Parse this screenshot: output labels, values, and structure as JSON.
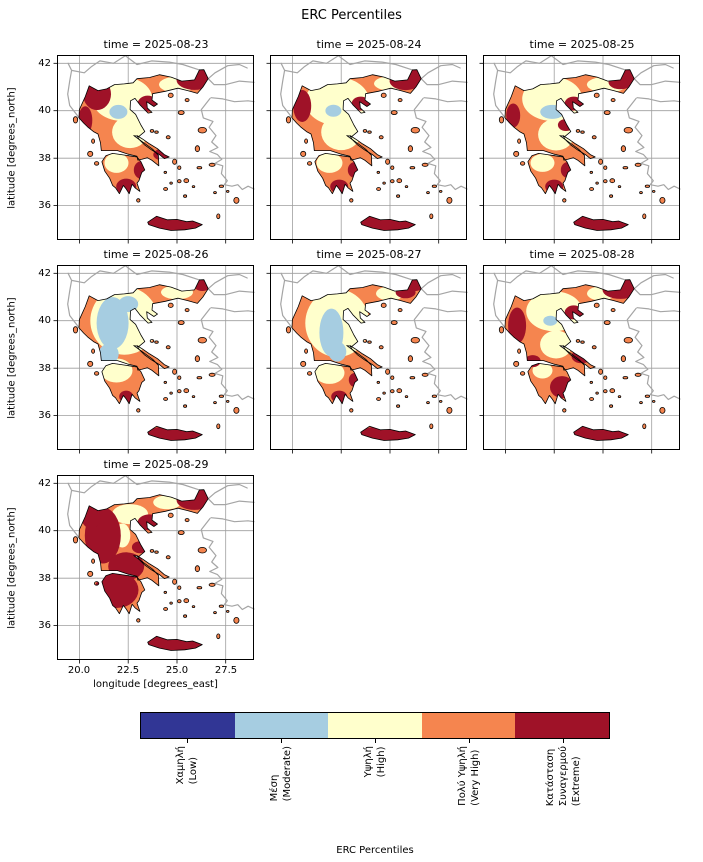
{
  "figure": {
    "title": "ERC Percentiles",
    "xlabel": "longitude [degrees_east]",
    "ylabel": "latitude [degrees_north]",
    "colorbar_label": "ERC Percentiles"
  },
  "facets": [
    {
      "title": "time = 2025-08-23"
    },
    {
      "title": "time = 2025-08-24"
    },
    {
      "title": "time = 2025-08-25"
    },
    {
      "title": "time = 2025-08-26"
    },
    {
      "title": "time = 2025-08-27"
    },
    {
      "title": "time = 2025-08-28"
    },
    {
      "title": "time = 2025-08-29"
    }
  ],
  "axes": {
    "yticks": [
      "42",
      "40",
      "38",
      "36"
    ],
    "xticks": [
      "20.0",
      "22.5",
      "25.0",
      "27.5"
    ]
  },
  "colorbar": {
    "categories": [
      {
        "name": "low",
        "color": "#313695",
        "lines": [
          "Χαμηλή",
          "(Low)"
        ]
      },
      {
        "name": "moderate",
        "color": "#a6cde1",
        "lines": [
          "Μέση",
          "(Moderate)"
        ]
      },
      {
        "name": "high",
        "color": "#ffffcc",
        "lines": [
          "Υψηλή",
          "(High)"
        ]
      },
      {
        "name": "very-high",
        "color": "#f5854f",
        "lines": [
          "Πολύ Υψηλή",
          "(Very High)"
        ]
      },
      {
        "name": "extreme",
        "color": "#9f1228",
        "lines": [
          "Κατάσταση",
          "Συναγερμού",
          "(Extreme)"
        ]
      }
    ]
  },
  "chart_data": {
    "type": "heatmap",
    "subtype": "faceted categorical choropleth maps of Greece (fire danger ERC percentile classes)",
    "title": "ERC Percentiles",
    "facet_variable": "time",
    "facets": [
      "2025-08-23",
      "2025-08-24",
      "2025-08-25",
      "2025-08-26",
      "2025-08-27",
      "2025-08-28",
      "2025-08-29"
    ],
    "facet_title_format": "time = {date}",
    "xlabel": "longitude [degrees_east]",
    "ylabel": "latitude [degrees_north]",
    "xticks": [
      20.0,
      22.5,
      25.0,
      27.5
    ],
    "yticks": [
      36,
      38,
      40,
      42
    ],
    "xlim": [
      18.85,
      28.95
    ],
    "ylim": [
      34.55,
      42.35
    ],
    "grid": true,
    "legend_position": "bottom horizontal colorbar",
    "colorbar_label": "ERC Percentiles",
    "categories": [
      {
        "label": "Χαμηλή (Low)",
        "color": "#313695"
      },
      {
        "label": "Μέση (Moderate)",
        "color": "#a6cde1"
      },
      {
        "label": "Υψηλή (High)",
        "color": "#ffffcc"
      },
      {
        "label": "Πολύ Υψηλή (Very High)",
        "color": "#f5854f"
      },
      {
        "label": "Κατάσταση Συναγερμού (Extreme)",
        "color": "#9f1228"
      }
    ],
    "facet_summaries": [
      "2025-08-23: mostly Very High; Extreme along NW coast, NE Thrace, Chalkidiki, south-east Peloponnese and Crete; High band over central/north mainland with small Moderate patch",
      "2025-08-24: similar to 08-23 with broader High areas over central Greece and north; Extreme in NE Thrace and Crete",
      "2025-08-25: Very High dominant; High over north-central mainland with small Moderate patch; Extreme in NE, east Thessaly and Crete",
      "2025-08-26: mildest day - large Moderate (light blue) region over west-central mainland surrounded by High; little Extreme outside Crete",
      "2025-08-27: Moderate column through central mainland inside a broad High region; Very High along edges; Crete Extreme",
      "2025-08-28: Very High/Extreme rebound; Extreme on west coast, NE Thrace, Euboea and SE Peloponnese; High in the north-center",
      "2025-08-29: most severe day - widespread Extreme over western/central mainland, Peloponnese, Chalkidiki, NE Thrace and Crete; High patch in the north-center"
    ]
  }
}
